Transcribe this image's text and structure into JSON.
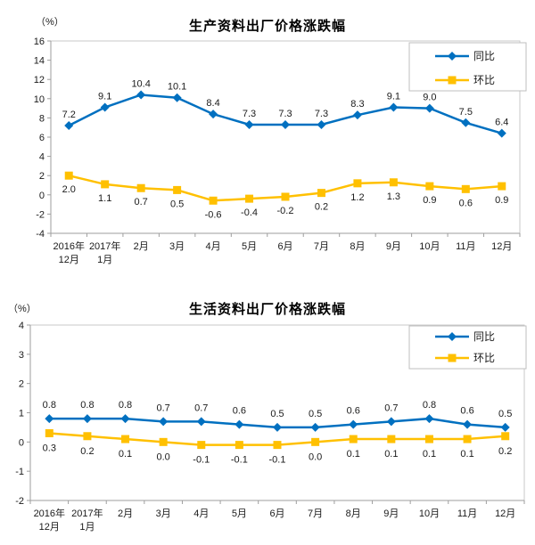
{
  "chart_data": [
    {
      "type": "line",
      "title": "生产资料出厂价格涨跌幅",
      "unit_label": "（%）",
      "categories": [
        "2016年12月",
        "2017年1月",
        "2月",
        "3月",
        "4月",
        "5月",
        "6月",
        "7月",
        "8月",
        "9月",
        "10月",
        "11月",
        "12月"
      ],
      "category_display": [
        [
          "2016年",
          "12月"
        ],
        [
          "2017年",
          "1月"
        ],
        [
          "2月"
        ],
        [
          "3月"
        ],
        [
          "4月"
        ],
        [
          "5月"
        ],
        [
          "6月"
        ],
        [
          "7月"
        ],
        [
          "8月"
        ],
        [
          "9月"
        ],
        [
          "10月"
        ],
        [
          "11月"
        ],
        [
          "12月"
        ]
      ],
      "series": [
        {
          "name": "同比",
          "key": "yoy",
          "color": "#0070C0",
          "marker": "diamond",
          "label_position": "above",
          "values": [
            7.2,
            9.1,
            10.4,
            10.1,
            8.4,
            7.3,
            7.3,
            7.3,
            8.3,
            9.1,
            9.0,
            7.5,
            6.4
          ]
        },
        {
          "name": "环比",
          "key": "mom",
          "color": "#FFC000",
          "marker": "square",
          "label_position": "below",
          "values": [
            2.0,
            1.1,
            0.7,
            0.5,
            -0.6,
            -0.4,
            -0.2,
            0.2,
            1.2,
            1.3,
            0.9,
            0.6,
            0.9
          ]
        }
      ],
      "ylim": [
        -4,
        16
      ],
      "ytick_step": 2,
      "grid": false,
      "legend_position": "top-right"
    },
    {
      "type": "line",
      "title": "生活资料出厂价格涨跌幅",
      "unit_label": "（%）",
      "categories": [
        "2016年12月",
        "2017年1月",
        "2月",
        "3月",
        "4月",
        "5月",
        "6月",
        "7月",
        "8月",
        "9月",
        "10月",
        "11月",
        "12月"
      ],
      "category_display": [
        [
          "2016年",
          "12月"
        ],
        [
          "2017年",
          "1月"
        ],
        [
          "2月"
        ],
        [
          "3月"
        ],
        [
          "4月"
        ],
        [
          "5月"
        ],
        [
          "6月"
        ],
        [
          "7月"
        ],
        [
          "8月"
        ],
        [
          "9月"
        ],
        [
          "10月"
        ],
        [
          "11月"
        ],
        [
          "12月"
        ]
      ],
      "series": [
        {
          "name": "同比",
          "key": "yoy",
          "color": "#0070C0",
          "marker": "diamond",
          "label_position": "above",
          "values": [
            0.8,
            0.8,
            0.8,
            0.7,
            0.7,
            0.6,
            0.5,
            0.5,
            0.6,
            0.7,
            0.8,
            0.6,
            0.5
          ]
        },
        {
          "name": "环比",
          "key": "mom",
          "color": "#FFC000",
          "marker": "square",
          "label_position": "below",
          "values": [
            0.3,
            0.2,
            0.1,
            0.0,
            -0.1,
            -0.1,
            -0.1,
            0.0,
            0.1,
            0.1,
            0.1,
            0.1,
            0.2
          ]
        }
      ],
      "ylim": [
        -2,
        4
      ],
      "ytick_step": 1,
      "grid": false,
      "legend_position": "top-right"
    }
  ],
  "colors": {
    "axis": "#9E9E9E",
    "plot_border": "#C9C9C9",
    "legend_border": "#BFBFBF",
    "label_text": "#1A1A1A"
  }
}
